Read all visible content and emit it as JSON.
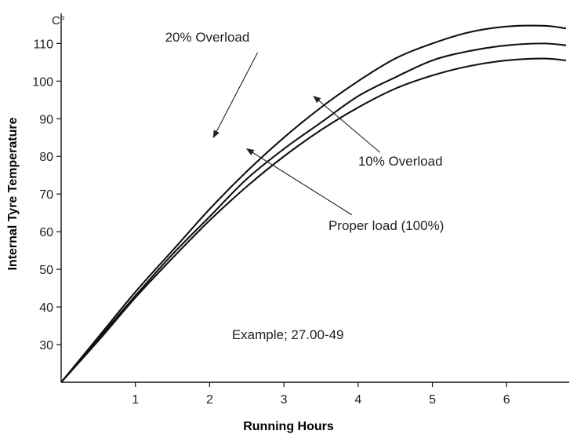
{
  "chart_data": {
    "type": "line",
    "xlabel": "Running Hours",
    "ylabel": "Internal Tyre Temperature",
    "y_unit": "C°",
    "xlim": [
      0,
      6.8
    ],
    "ylim": [
      20,
      118
    ],
    "x_ticks": [
      "1",
      "2",
      "3",
      "4",
      "5",
      "6"
    ],
    "y_ticks": [
      "30",
      "40",
      "50",
      "60",
      "70",
      "80",
      "90",
      "100",
      "110"
    ],
    "grid": false,
    "series": [
      {
        "name": "20% Overload",
        "x": [
          0,
          0.5,
          1,
          1.5,
          2,
          2.5,
          3,
          3.5,
          4,
          4.5,
          5,
          5.5,
          6,
          6.5,
          6.8
        ],
        "y": [
          20,
          32,
          44,
          55,
          66,
          76,
          85,
          93,
          100,
          106,
          110,
          113,
          114.5,
          114.7,
          114
        ]
      },
      {
        "name": "10% Overload",
        "x": [
          0,
          0.5,
          1,
          1.5,
          2,
          2.5,
          3,
          3.5,
          4,
          4.5,
          5,
          5.5,
          6,
          6.5,
          6.8
        ],
        "y": [
          20,
          31.5,
          43,
          54,
          64,
          74,
          82,
          89,
          96,
          101,
          105.5,
          108,
          109.5,
          110,
          109.5
        ]
      },
      {
        "name": "Proper load (100%)",
        "x": [
          0,
          0.5,
          1,
          1.5,
          2,
          2.5,
          3,
          3.5,
          4,
          4.5,
          5,
          5.5,
          6,
          6.5,
          6.8
        ],
        "y": [
          20,
          31,
          42.5,
          53,
          63,
          72,
          80,
          87,
          93,
          98,
          101.5,
          104,
          105.5,
          106,
          105.5
        ]
      }
    ],
    "annotations": [
      {
        "text": "20% Overload",
        "series": "20% Overload",
        "text_at": [
          1.4,
          110.5
        ],
        "points_to": [
          2.05,
          85
        ]
      },
      {
        "text": "10% Overload",
        "series": "10% Overload",
        "text_at": [
          4.0,
          77.5
        ],
        "points_to": [
          3.4,
          96
        ]
      },
      {
        "text": "Proper load (100%)",
        "series": "Proper load (100%)",
        "text_at": [
          3.6,
          60.5
        ],
        "points_to": [
          2.5,
          82
        ]
      },
      {
        "text": "Example; 27.00-49",
        "text_at": [
          2.3,
          31.5
        ]
      }
    ]
  }
}
